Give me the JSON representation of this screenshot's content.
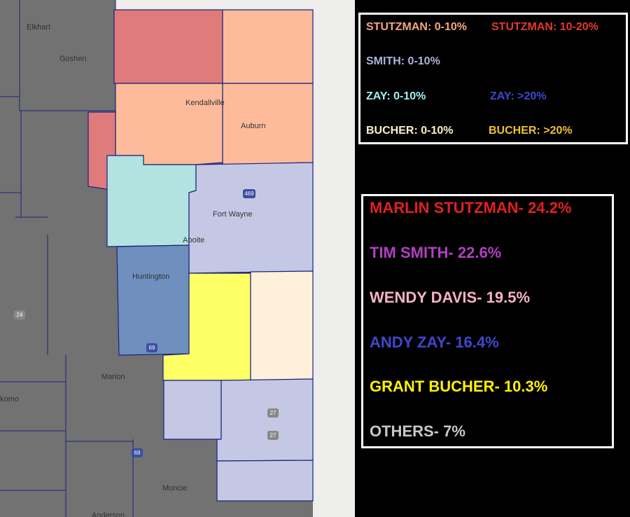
{
  "legend": [
    "STUTZMAN: 0-10%",
    "STUTZMAN: 10-20%",
    "SMITH: 0-10%",
    "ZAY: 0-10%",
    "ZAY: >20%",
    "BUCHER: 0-10%",
    "BUCHER: >20%"
  ],
  "results": [
    "MARLIN STUTZMAN- 24.2%",
    "TIM SMITH- 22.6%",
    "WENDY DAVIS- 19.5%",
    "ANDY ZAY- 16.4%",
    "GRANT BUCHER- 10.3%",
    "OTHERS- 7%"
  ],
  "places": [
    "Elkhart",
    "Goshen",
    "Kendallville",
    "Auburn",
    "Fort Wayne",
    "Aboite",
    "Huntington",
    "Marion",
    "Muncie",
    "komo",
    "Anderson"
  ],
  "shields": [
    "24",
    "69",
    "469",
    "27",
    "27",
    "69"
  ]
}
